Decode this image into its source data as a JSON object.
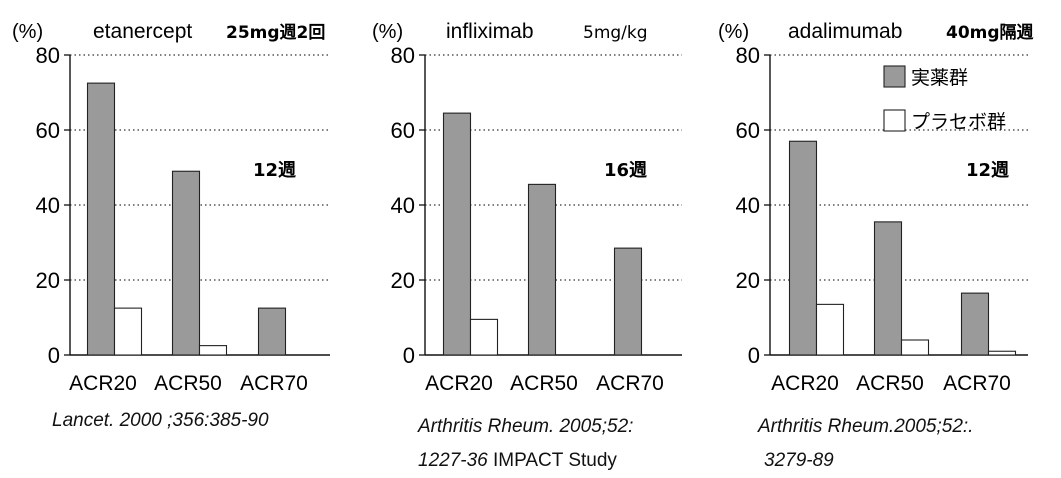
{
  "chart_data": [
    {
      "type": "bar",
      "drug": "etanercept",
      "dose": "25mg週2回",
      "duration": "12週",
      "y_unit": "(%)",
      "ylim": [
        0,
        80
      ],
      "yticks": [
        "0",
        "20",
        "40",
        "60",
        "80"
      ],
      "grid": "dotted horizontal",
      "categories": [
        "ACR20",
        "ACR50",
        "ACR70"
      ],
      "series": [
        {
          "name": "実薬群",
          "values": [
            72.5,
            49,
            12.5
          ],
          "fill": "#9a9a9a"
        },
        {
          "name": "プラセボ群",
          "values": [
            12.5,
            2.5,
            0
          ],
          "fill": "#ffffff"
        }
      ]
    },
    {
      "type": "bar",
      "drug": "infliximab",
      "dose": "5mg/kg",
      "duration": "16週",
      "y_unit": "(%)",
      "ylim": [
        0,
        80
      ],
      "yticks": [
        "0",
        "20",
        "40",
        "60",
        "80"
      ],
      "grid": "dotted horizontal",
      "categories": [
        "ACR20",
        "ACR50",
        "ACR70"
      ],
      "series": [
        {
          "name": "実薬群",
          "values": [
            64.5,
            45.5,
            28.5
          ],
          "fill": "#9a9a9a"
        },
        {
          "name": "プラセボ群",
          "values": [
            9.5,
            0,
            0
          ],
          "fill": "#ffffff"
        }
      ]
    },
    {
      "type": "bar",
      "drug": "adalimumab",
      "dose": "40mg隔週",
      "duration": "12週",
      "y_unit": "(%)",
      "ylim": [
        0,
        80
      ],
      "yticks": [
        "0",
        "20",
        "40",
        "60",
        "80"
      ],
      "grid": "dotted horizontal",
      "legend_position": "top-right",
      "categories": [
        "ACR20",
        "ACR50",
        "ACR70"
      ],
      "series": [
        {
          "name": "実薬群",
          "values": [
            57,
            35.5,
            16.5
          ],
          "fill": "#9a9a9a"
        },
        {
          "name": "プラセボ群",
          "values": [
            13.5,
            4,
            1
          ],
          "fill": "#ffffff"
        }
      ]
    }
  ],
  "citations": [
    {
      "line1_italic": "Lancet. 2000 ;356:385-90",
      "line2_italic": "",
      "line2_plain": ""
    },
    {
      "line1_italic": "Arthritis Rheum. 2005;52:",
      "line2_italic": "1227-36",
      "line2_plain": " IMPACT   Study"
    },
    {
      "line1_italic": "Arthritis Rheum.2005;52:.",
      "line2_italic": "3279-89",
      "line2_plain": ""
    }
  ]
}
